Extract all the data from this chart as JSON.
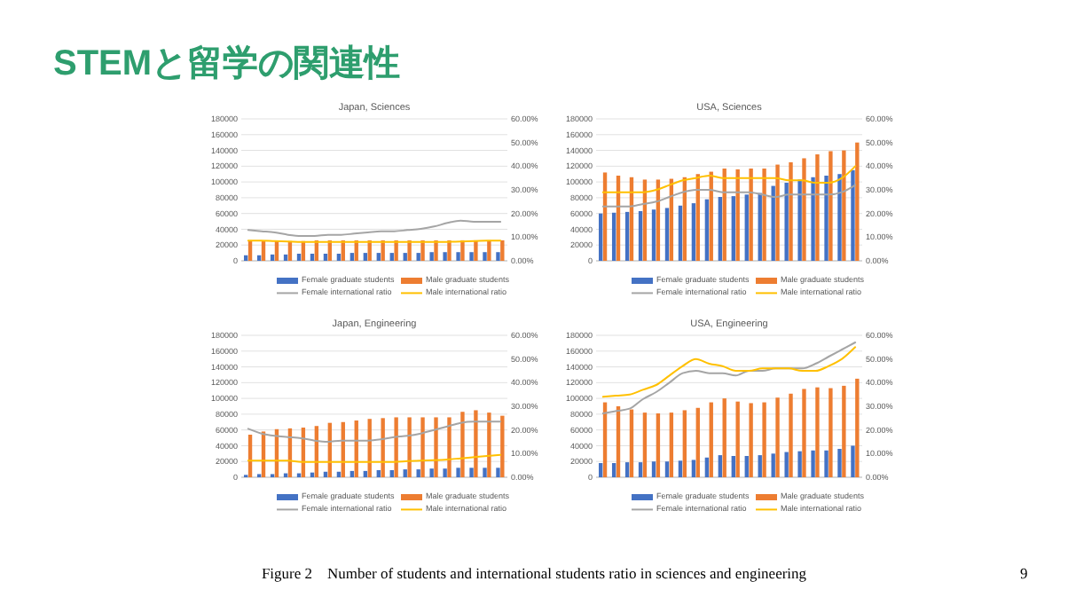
{
  "chart_data": [
    {
      "type": "other",
      "title": "STEMと留学の関連性",
      "annotations": [
        "Figure 2    Number of students and international students ratio in sciences and engineering",
        "9"
      ]
    },
    {
      "type": "bar",
      "title": "Japan, Sciences",
      "categories": [
        null,
        null,
        null,
        null,
        null,
        null,
        null,
        null,
        null,
        null,
        null,
        null,
        null,
        null,
        null,
        null,
        null,
        null,
        null,
        null
      ],
      "series": [
        {
          "name": "Female graduate students",
          "color": "#4472c4",
          "values": [
            7000,
            7000,
            8000,
            8000,
            9000,
            9000,
            9000,
            9000,
            10000,
            10000,
            10000,
            10000,
            10000,
            10000,
            11000,
            11000,
            11000,
            11000,
            11000,
            11000
          ]
        },
        {
          "name": "Male graduate students",
          "color": "#ed7d31",
          "values": [
            26000,
            25000,
            25000,
            25000,
            25000,
            26000,
            26000,
            26000,
            26000,
            26000,
            26000,
            26000,
            26000,
            26000,
            26000,
            26000,
            26000,
            26000,
            26000,
            26000
          ]
        },
        {
          "name": "Female international ratio",
          "color": "#a5a5a5",
          "type": "line",
          "axis": "y2",
          "values": [
            13,
            12.5,
            12,
            11,
            10.5,
            10.5,
            11,
            11,
            11.5,
            12,
            12.5,
            12.5,
            13,
            13.5,
            14.5,
            16,
            17,
            16.5,
            16.5,
            16.5
          ]
        },
        {
          "name": "Male international ratio",
          "color": "#ffc000",
          "type": "line",
          "axis": "y2",
          "values": [
            8.5,
            8.5,
            8.3,
            8.2,
            8,
            8,
            8,
            8,
            8,
            8,
            8,
            8,
            8,
            8,
            8,
            8,
            8.2,
            8.3,
            8.5,
            8.5
          ]
        }
      ],
      "ylim": [
        0,
        180000
      ],
      "yticks": [
        0,
        20000,
        40000,
        60000,
        80000,
        100000,
        120000,
        140000,
        160000,
        180000
      ],
      "y2lim": [
        0,
        60
      ],
      "y2ticks": [
        {
          "value": 0,
          "label": "0.00%"
        },
        {
          "value": 10,
          "label": "10.00%"
        },
        {
          "value": 20,
          "label": "20.00%"
        },
        {
          "value": 30,
          "label": "30.00%"
        },
        {
          "value": 40,
          "label": "40.00%"
        },
        {
          "value": 50,
          "label": "50.00%"
        },
        {
          "value": 60,
          "label": "60.00%"
        }
      ],
      "grid": "y",
      "legend": "bottom"
    },
    {
      "type": "bar",
      "title": "USA, Sciences",
      "categories": [
        null,
        null,
        null,
        null,
        null,
        null,
        null,
        null,
        null,
        null,
        null,
        null,
        null,
        null,
        null,
        null,
        null,
        null,
        null,
        null
      ],
      "series": [
        {
          "name": "Female graduate students",
          "color": "#4472c4",
          "values": [
            60000,
            61000,
            62000,
            63000,
            65000,
            67000,
            70000,
            73000,
            78000,
            81000,
            82000,
            84000,
            86000,
            95000,
            99000,
            103000,
            106000,
            108000,
            110000,
            115000
          ]
        },
        {
          "name": "Male graduate students",
          "color": "#ed7d31",
          "values": [
            112000,
            108000,
            106000,
            103000,
            103000,
            104000,
            106000,
            110000,
            113000,
            117000,
            116000,
            117000,
            117000,
            122000,
            125000,
            130000,
            135000,
            139000,
            140000,
            150000
          ]
        },
        {
          "name": "Female international ratio",
          "color": "#a5a5a5",
          "type": "line",
          "axis": "y2",
          "values": [
            23,
            23,
            23,
            24,
            25,
            27,
            29,
            30,
            30,
            29,
            29,
            29,
            28,
            27,
            28,
            28,
            28,
            28,
            29,
            32
          ]
        },
        {
          "name": "Male international ratio",
          "color": "#ffc000",
          "type": "line",
          "axis": "y2",
          "values": [
            29,
            29,
            29,
            29,
            30,
            32,
            34,
            35,
            36,
            35,
            35,
            35,
            35,
            35,
            34,
            34,
            33,
            33,
            35,
            40
          ]
        }
      ],
      "ylim": [
        0,
        180000
      ],
      "yticks": [
        0,
        20000,
        40000,
        60000,
        80000,
        100000,
        120000,
        140000,
        160000,
        180000
      ],
      "y2lim": [
        0,
        60
      ],
      "y2ticks": [
        {
          "value": 0,
          "label": "0.00%"
        },
        {
          "value": 10,
          "label": "10.00%"
        },
        {
          "value": 20,
          "label": "20.00%"
        },
        {
          "value": 30,
          "label": "30.00%"
        },
        {
          "value": 40,
          "label": "40.00%"
        },
        {
          "value": 50,
          "label": "50.00%"
        },
        {
          "value": 60,
          "label": "60.00%"
        }
      ],
      "grid": "y",
      "legend": "bottom"
    },
    {
      "type": "bar",
      "title": "Japan, Engineering",
      "categories": [
        null,
        null,
        null,
        null,
        null,
        null,
        null,
        null,
        null,
        null,
        null,
        null,
        null,
        null,
        null,
        null,
        null,
        null,
        null,
        null
      ],
      "series": [
        {
          "name": "Female graduate students",
          "color": "#4472c4",
          "values": [
            3000,
            4000,
            4000,
            5000,
            5000,
            6000,
            7000,
            7000,
            8000,
            8000,
            9000,
            9000,
            10000,
            10000,
            11000,
            11000,
            12000,
            12000,
            12000,
            12000
          ]
        },
        {
          "name": "Male graduate students",
          "color": "#ed7d31",
          "values": [
            54000,
            58000,
            61000,
            62000,
            63000,
            65000,
            69000,
            70000,
            72000,
            74000,
            75000,
            76000,
            76000,
            76000,
            76000,
            76000,
            83000,
            85000,
            82000,
            78000
          ]
        },
        {
          "name": "Female international ratio",
          "color": "#a5a5a5",
          "type": "line",
          "axis": "y2",
          "values": [
            20.5,
            18.5,
            17.5,
            17,
            16.5,
            15.5,
            15,
            15.5,
            15.5,
            15.5,
            16,
            17,
            17.5,
            18.5,
            20,
            21.5,
            23,
            23.5,
            23.5,
            23.5
          ]
        },
        {
          "name": "Male international ratio",
          "color": "#ffc000",
          "type": "line",
          "axis": "y2",
          "values": [
            7,
            7,
            7,
            7,
            6.5,
            6.5,
            6.5,
            6.5,
            6.5,
            6.5,
            6.5,
            6.5,
            6.8,
            7,
            7.2,
            7.5,
            8,
            8.5,
            9,
            9.5
          ]
        }
      ],
      "ylim": [
        0,
        180000
      ],
      "yticks": [
        0,
        20000,
        40000,
        60000,
        80000,
        100000,
        120000,
        140000,
        160000,
        180000
      ],
      "y2lim": [
        0,
        60
      ],
      "y2ticks": [
        {
          "value": 0,
          "label": "0.00%"
        },
        {
          "value": 10,
          "label": "10.00%"
        },
        {
          "value": 20,
          "label": "20.00%"
        },
        {
          "value": 30,
          "label": "30.00%"
        },
        {
          "value": 40,
          "label": "40.00%"
        },
        {
          "value": 50,
          "label": "50.00%"
        },
        {
          "value": 60,
          "label": "60.00%"
        }
      ],
      "grid": "y",
      "legend": "bottom"
    },
    {
      "type": "bar",
      "title": "USA, Engineering",
      "categories": [
        null,
        null,
        null,
        null,
        null,
        null,
        null,
        null,
        null,
        null,
        null,
        null,
        null,
        null,
        null,
        null,
        null,
        null,
        null,
        null
      ],
      "series": [
        {
          "name": "Female graduate students",
          "color": "#4472c4",
          "values": [
            18000,
            18000,
            19000,
            19000,
            20000,
            20000,
            21000,
            22000,
            25000,
            28000,
            27000,
            27000,
            28000,
            30000,
            32000,
            33000,
            34000,
            34000,
            36000,
            40000
          ]
        },
        {
          "name": "Male graduate students",
          "color": "#ed7d31",
          "values": [
            95000,
            90000,
            86000,
            82000,
            81000,
            82000,
            85000,
            88000,
            95000,
            100000,
            96000,
            94000,
            95000,
            101000,
            106000,
            112000,
            114000,
            113000,
            116000,
            125000
          ]
        },
        {
          "name": "Female international ratio",
          "color": "#a5a5a5",
          "type": "line",
          "axis": "y2",
          "values": [
            27,
            28,
            29,
            33,
            36,
            40,
            44,
            45,
            44,
            44,
            43,
            45,
            45,
            46,
            46,
            46,
            48,
            51,
            54,
            57
          ]
        },
        {
          "name": "Male international ratio",
          "color": "#ffc000",
          "type": "line",
          "axis": "y2",
          "values": [
            34,
            34.5,
            35,
            37,
            39,
            43,
            47,
            50,
            48,
            47,
            45,
            45,
            46,
            46,
            46,
            45,
            45,
            47,
            50,
            55
          ]
        }
      ],
      "ylim": [
        0,
        180000
      ],
      "yticks": [
        0,
        20000,
        40000,
        60000,
        80000,
        100000,
        120000,
        140000,
        160000,
        180000
      ],
      "y2lim": [
        0,
        60
      ],
      "y2ticks": [
        {
          "value": 0,
          "label": "0.00%"
        },
        {
          "value": 10,
          "label": "10.00%"
        },
        {
          "value": 20,
          "label": "20.00%"
        },
        {
          "value": 30,
          "label": "30.00%"
        },
        {
          "value": 40,
          "label": "40.00%"
        },
        {
          "value": 50,
          "label": "50.00%"
        },
        {
          "value": 60,
          "label": "60.00%"
        }
      ],
      "grid": "y",
      "legend": "bottom"
    }
  ]
}
